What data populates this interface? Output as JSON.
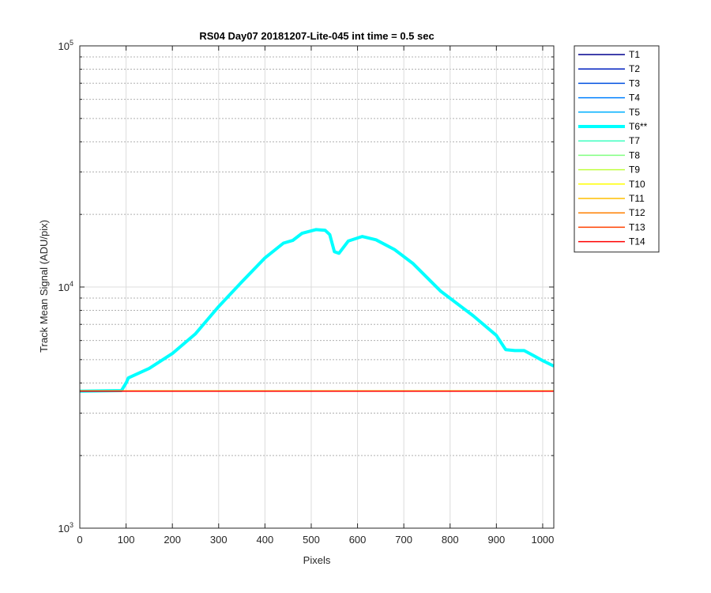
{
  "chart_data": {
    "type": "line",
    "title": "RS04 Day07 20181207-Lite-045 int time = 0.5 sec",
    "xlabel": "Pixels",
    "ylabel": "Track Mean Signal (ADU/pix)",
    "xlim": [
      0,
      1024
    ],
    "ylim": [
      1000,
      100000
    ],
    "yscale": "log",
    "grid": "on",
    "legend_location": "outside-right",
    "xticks": [
      0,
      100,
      200,
      300,
      400,
      500,
      600,
      700,
      800,
      900,
      1000
    ],
    "xtick_labels": [
      "0",
      "100",
      "200",
      "300",
      "400",
      "500",
      "600",
      "700",
      "800",
      "900",
      "1000"
    ],
    "yticks": [
      {
        "value": 1000,
        "base": "10",
        "exp": "3"
      },
      {
        "value": 10000,
        "base": "10",
        "exp": "4"
      },
      {
        "value": 100000,
        "base": "10",
        "exp": "5"
      }
    ],
    "series": [
      {
        "name": "T1",
        "color": "#00008f",
        "width": 1.5,
        "x": [
          0,
          1024
        ],
        "y": [
          3700,
          3710
        ]
      },
      {
        "name": "T2",
        "color": "#0020c0",
        "width": 1.5,
        "x": [
          0,
          1024
        ],
        "y": [
          3700,
          3710
        ]
      },
      {
        "name": "T3",
        "color": "#0050e0",
        "width": 1.5,
        "x": [
          0,
          1024
        ],
        "y": [
          3700,
          3710
        ]
      },
      {
        "name": "T4",
        "color": "#0080ff",
        "width": 1.5,
        "x": [
          0,
          1024
        ],
        "y": [
          3700,
          3710
        ]
      },
      {
        "name": "T5",
        "color": "#00b0ff",
        "width": 1.5,
        "x": [
          0,
          1024
        ],
        "y": [
          3700,
          3710
        ]
      },
      {
        "name": "T6**",
        "color": "#00ffff",
        "width": 4,
        "x": [
          0,
          90,
          100,
          105,
          150,
          200,
          250,
          300,
          350,
          400,
          440,
          460,
          480,
          510,
          530,
          540,
          550,
          560,
          580,
          610,
          640,
          680,
          720,
          780,
          850,
          900,
          920,
          940,
          960,
          980,
          1000,
          1024
        ],
        "y": [
          3700,
          3720,
          4000,
          4200,
          4600,
          5300,
          6400,
          8300,
          10500,
          13200,
          15200,
          15600,
          16700,
          17300,
          17200,
          16500,
          14000,
          13800,
          15500,
          16200,
          15700,
          14300,
          12500,
          9600,
          7600,
          6300,
          5500,
          5450,
          5450,
          5200,
          4950,
          4700
        ]
      },
      {
        "name": "T7",
        "color": "#40ffc0",
        "width": 1.5,
        "x": [
          0,
          1024
        ],
        "y": [
          3710,
          3710
        ]
      },
      {
        "name": "T8",
        "color": "#80ff80",
        "width": 1.5,
        "x": [
          0,
          1024
        ],
        "y": [
          3710,
          3710
        ]
      },
      {
        "name": "T9",
        "color": "#c0ff40",
        "width": 1.5,
        "x": [
          0,
          1024
        ],
        "y": [
          3710,
          3710
        ]
      },
      {
        "name": "T10",
        "color": "#ffff00",
        "width": 1.5,
        "x": [
          0,
          1024
        ],
        "y": [
          3705,
          3705
        ]
      },
      {
        "name": "T11",
        "color": "#ffbf00",
        "width": 1.5,
        "x": [
          0,
          1024
        ],
        "y": [
          3705,
          3705
        ]
      },
      {
        "name": "T12",
        "color": "#ff8000",
        "width": 1.5,
        "x": [
          0,
          1024
        ],
        "y": [
          3700,
          3700
        ]
      },
      {
        "name": "T13",
        "color": "#ff4000",
        "width": 1.5,
        "x": [
          0,
          1024
        ],
        "y": [
          3700,
          3700
        ]
      },
      {
        "name": "T14",
        "color": "#ff0000",
        "width": 1.5,
        "x": [
          0,
          1024
        ],
        "y": [
          3700,
          3700
        ]
      }
    ]
  }
}
